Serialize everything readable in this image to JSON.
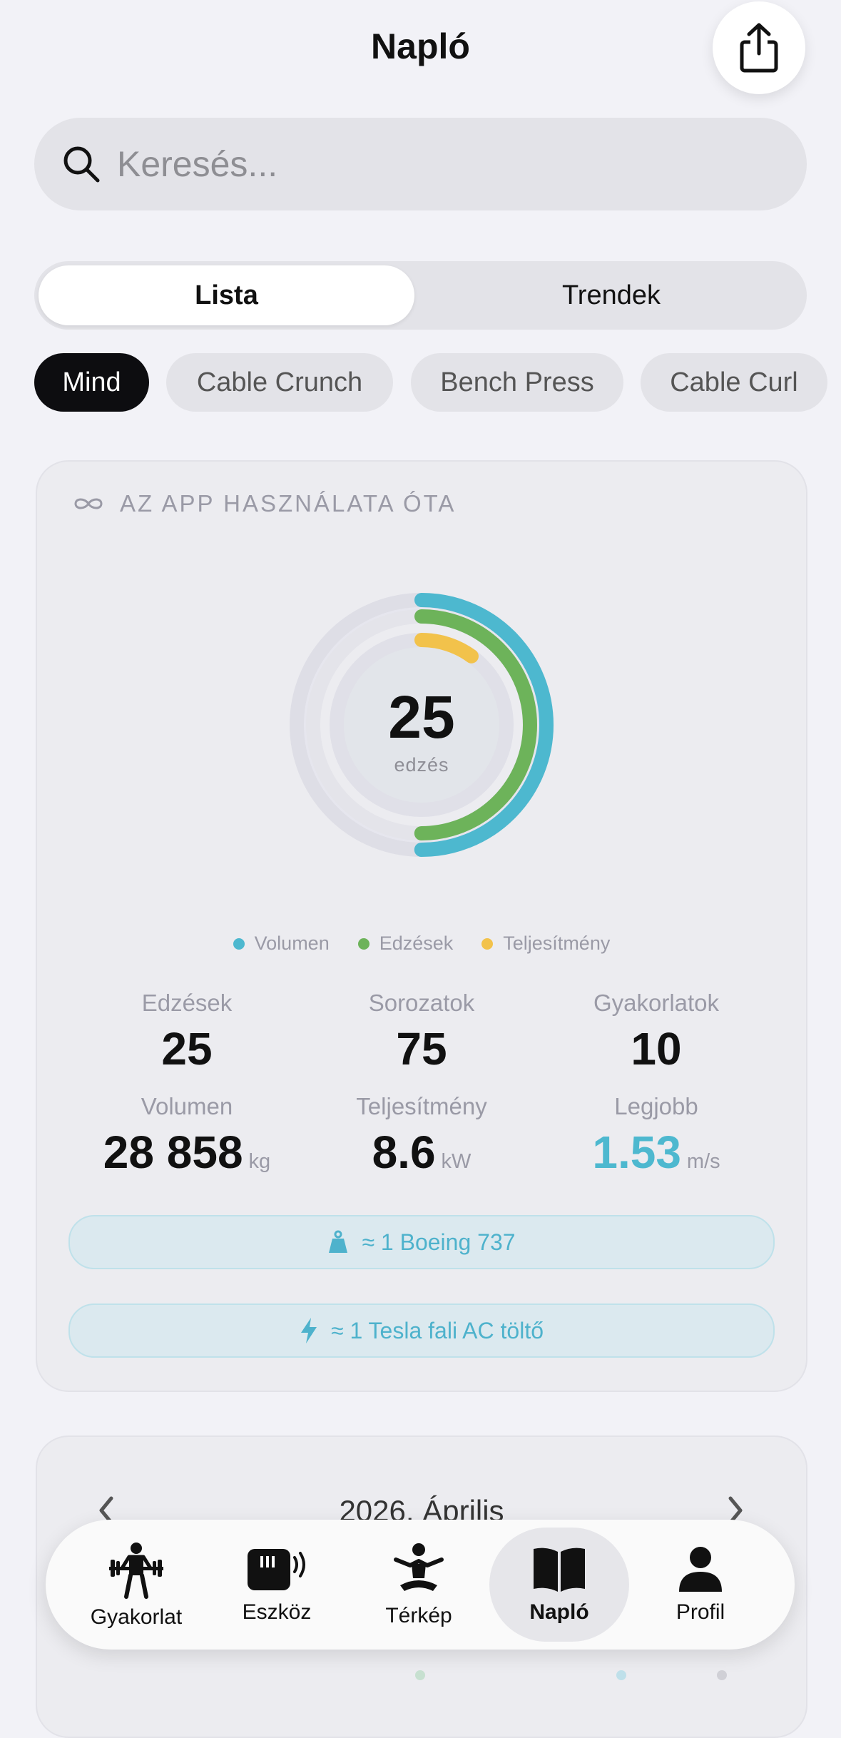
{
  "header": {
    "title": "Napló",
    "share_icon": "share-icon"
  },
  "search": {
    "placeholder": "Keresés..."
  },
  "segmented": {
    "options": [
      "Lista",
      "Trendek"
    ],
    "selected": "Lista"
  },
  "filter_chips": [
    {
      "label": "Mind",
      "active": true
    },
    {
      "label": "Cable Crunch",
      "active": false
    },
    {
      "label": "Bench Press",
      "active": false
    },
    {
      "label": "Cable Curl",
      "active": false
    }
  ],
  "summary": {
    "heading": "AZ APP HASZNÁLATA ÓTA",
    "ring_center_value": "25",
    "ring_center_label": "edzés",
    "rings": [
      {
        "name": "Volumen",
        "color": "#4db8cf",
        "progress": 0.5
      },
      {
        "name": "Edzések",
        "color": "#6db35a",
        "progress": 0.5
      },
      {
        "name": "Teljesítmény",
        "color": "#f2c24b",
        "progress": 0.1
      }
    ],
    "legend": [
      {
        "label": "Volumen",
        "color": "#4db8cf"
      },
      {
        "label": "Edzések",
        "color": "#6db35a"
      },
      {
        "label": "Teljesítmény",
        "color": "#f2c24b"
      }
    ],
    "stats": [
      {
        "label": "Edzések",
        "value": "25",
        "unit": ""
      },
      {
        "label": "Sorozatok",
        "value": "75",
        "unit": ""
      },
      {
        "label": "Gyakorlatok",
        "value": "10",
        "unit": ""
      },
      {
        "label": "Volumen",
        "value": "28 858",
        "unit": "kg"
      },
      {
        "label": "Teljesítmény",
        "value": "8.6",
        "unit": "kW"
      },
      {
        "label": "Legjobb",
        "value": "1.53",
        "unit": "m/s"
      }
    ],
    "comparisons": [
      {
        "icon": "weight-icon",
        "text": "≈ 1 Boeing 737"
      },
      {
        "icon": "bolt-icon",
        "text": "≈ 1 Tesla fali AC töltő"
      }
    ]
  },
  "calendar": {
    "month": "2026. Április"
  },
  "tabbar": {
    "items": [
      {
        "label": "Gyakorlat",
        "icon": "weightlifter-icon"
      },
      {
        "label": "Eszköz",
        "icon": "device-icon"
      },
      {
        "label": "Térkép",
        "icon": "body-map-icon"
      },
      {
        "label": "Napló",
        "icon": "book-icon",
        "active": true
      },
      {
        "label": "Profil",
        "icon": "person-icon"
      }
    ]
  },
  "colors": {
    "accent": "#4db8cf",
    "background": "#f2f2f7",
    "dark_chip": "#0d0d10"
  }
}
